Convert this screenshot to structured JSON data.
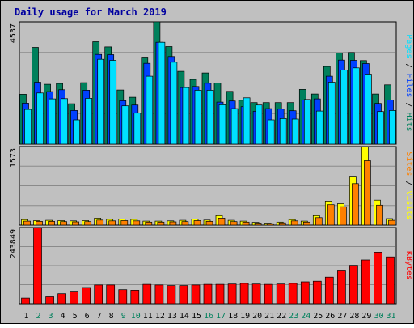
{
  "colors": {
    "background": "#C0C0C0",
    "title": "#0000A0",
    "hits": "#00805C",
    "files": "#0040FF",
    "pages": "#00E0FF",
    "visits": "#FFFF00",
    "sites": "#FF8000",
    "kbytes": "#FF0000",
    "weekend_label": "#00805C",
    "weekday_label": "#000000"
  },
  "chart_data": {
    "type": "bar",
    "title": "Daily usage for March 2019",
    "days": [
      "1",
      "2",
      "3",
      "4",
      "5",
      "6",
      "7",
      "8",
      "9",
      "10",
      "11",
      "12",
      "13",
      "14",
      "15",
      "16",
      "17",
      "18",
      "19",
      "20",
      "21",
      "22",
      "23",
      "24",
      "25",
      "26",
      "27",
      "28",
      "29",
      "30",
      "31"
    ],
    "weekend_days": [
      "2",
      "3",
      "9",
      "10",
      "16",
      "17",
      "23",
      "24",
      "30",
      "31"
    ],
    "panels": [
      {
        "id": "hits-files-pages",
        "ymax": 4537,
        "ymax_label": "4537",
        "legend": [
          "Pages",
          "Files",
          "Hits"
        ],
        "series": [
          {
            "name": "Hits",
            "values": [
              1850,
              3590,
              2220,
              2250,
              1500,
              2280,
              3800,
              3610,
              2010,
              1740,
              3230,
              4540,
              3620,
              2700,
              2400,
              2640,
              2270,
              1960,
              1630,
              1540,
              1540,
              1540,
              1540,
              2030,
              1860,
              2880,
              3380,
              3400,
              3100,
              1860,
              2200
            ]
          },
          {
            "name": "Files",
            "values": [
              1520,
              2300,
              1950,
              2020,
              1250,
              2000,
              3330,
              3320,
              1610,
              1450,
              3000,
              3780,
              3250,
              2100,
              2140,
              2260,
              1560,
              1600,
              1390,
              1220,
              1320,
              1300,
              1240,
              1640,
              1680,
              2520,
              3120,
              3110,
              2990,
              1510,
              1640
            ]
          },
          {
            "name": "Pages",
            "values": [
              1290,
              1900,
              1680,
              1690,
              900,
              1700,
              3150,
              3110,
              1420,
              1150,
              2520,
              3780,
              3040,
              2100,
              2000,
              2000,
              1460,
              1320,
              1720,
              1450,
              900,
              950,
              930,
              1660,
              1230,
              2300,
              2750,
              2830,
              2600,
              1210,
              1250
            ]
          }
        ]
      },
      {
        "id": "visits-sites",
        "ymax": 1573,
        "ymax_label": "1573",
        "legend": [
          "Sites",
          "Visits"
        ],
        "series": [
          {
            "name": "Visits",
            "values": [
              110,
              90,
              95,
              90,
              85,
              90,
              140,
              115,
              120,
              115,
              80,
              80,
              85,
              95,
              120,
              100,
              190,
              95,
              80,
              55,
              40,
              60,
              110,
              80,
              190,
              480,
              430,
              980,
              1573,
              500,
              130
            ]
          },
          {
            "name": "Sites",
            "values": [
              80,
              75,
              75,
              70,
              65,
              70,
              100,
              85,
              90,
              85,
              60,
              60,
              65,
              70,
              90,
              75,
              140,
              70,
              60,
              40,
              30,
              45,
              85,
              60,
              150,
              410,
              370,
              830,
              1290,
              400,
              95
            ]
          }
        ]
      },
      {
        "id": "kbytes",
        "ymax": 243849,
        "ymax_label": "243849",
        "legend": [
          "KBytes"
        ],
        "series": [
          {
            "name": "KBytes",
            "values": [
              18000,
              243849,
              22000,
              32000,
              40000,
              52000,
              60000,
              60000,
              45000,
              43000,
              62000,
              60000,
              58000,
              58000,
              60000,
              62000,
              62000,
              63000,
              65000,
              63000,
              62000,
              63000,
              65000,
              70000,
              72000,
              85000,
              105000,
              123000,
              140000,
              165000,
              150000
            ]
          }
        ]
      }
    ]
  }
}
